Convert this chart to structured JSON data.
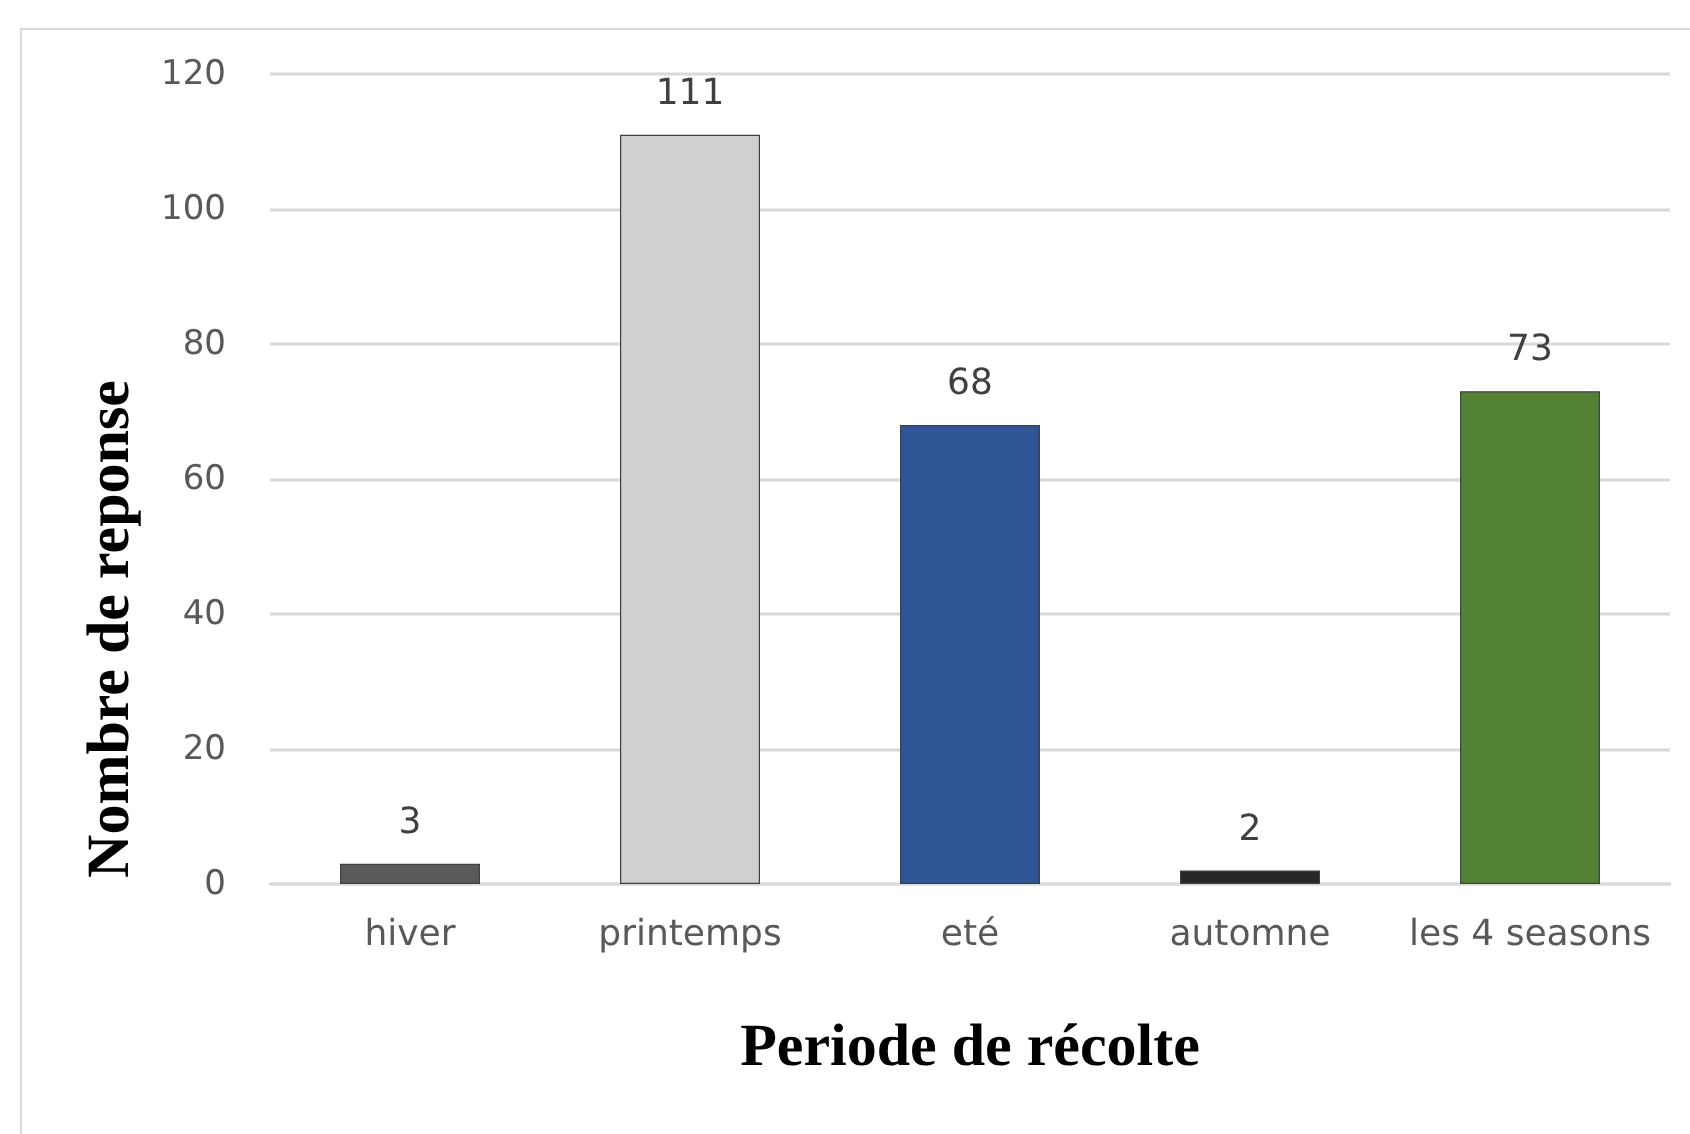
{
  "chart_data": {
    "type": "bar",
    "xlabel": "Periode de récolte",
    "ylabel": "Nombre de reponse",
    "categories": [
      "hiver",
      "printemps",
      "eté",
      "automne",
      "les 4 seasons"
    ],
    "values": [
      3,
      111,
      68,
      2,
      73
    ],
    "colors": [
      "#5a5a5a",
      "#d0d0d0",
      "#2f5597",
      "#262626",
      "#548235"
    ],
    "ylim": [
      0,
      120
    ],
    "yticks": [
      0,
      20,
      40,
      60,
      80,
      100,
      120
    ],
    "grid": "y",
    "data_labels": true
  }
}
